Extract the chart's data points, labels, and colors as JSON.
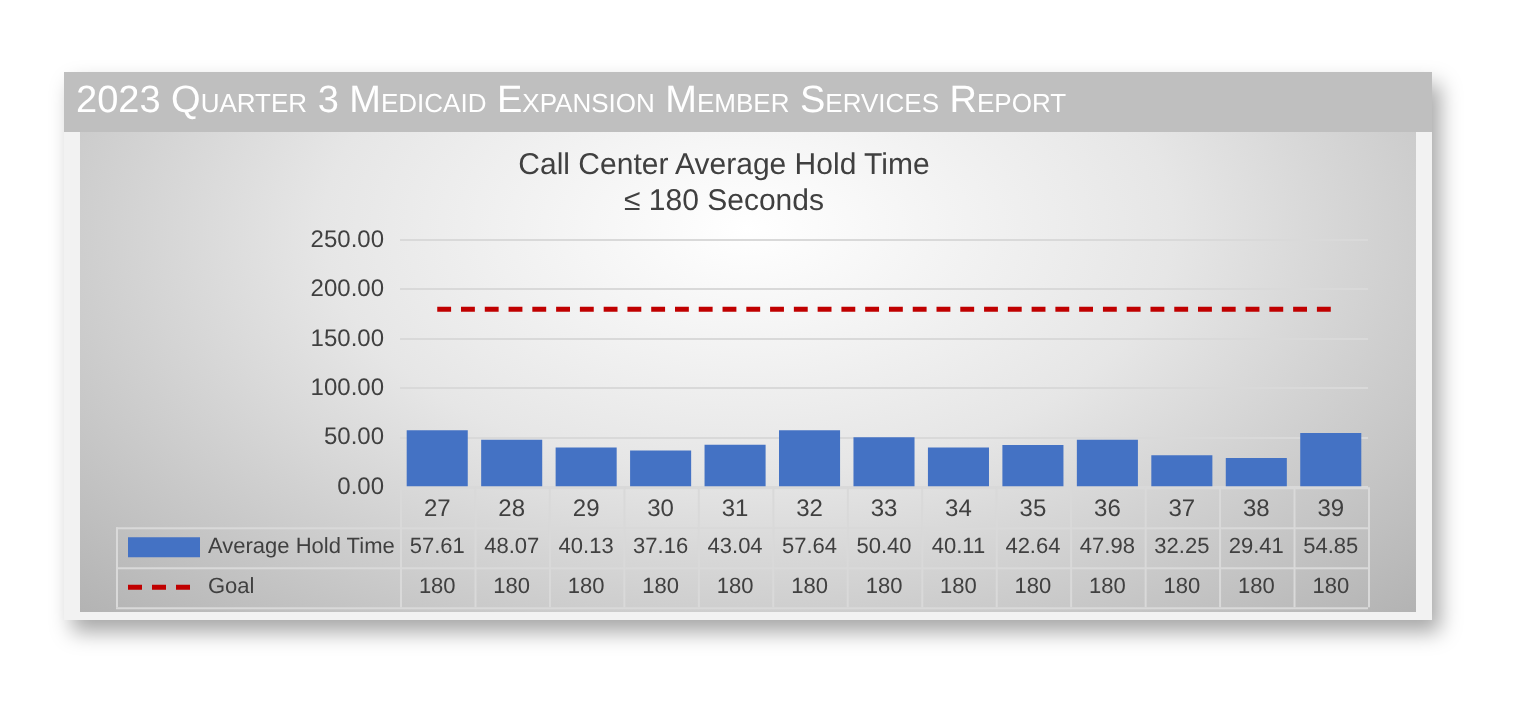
{
  "chart_data": {
    "type": "bar",
    "title": "2023 Quarter 3 Medicaid Expansion Member Services Report",
    "subtitle": "Call Center Average Hold Time\n≤ 180 Seconds",
    "categories": [
      "27",
      "28",
      "29",
      "30",
      "31",
      "32",
      "33",
      "34",
      "35",
      "36",
      "37",
      "38",
      "39"
    ],
    "series": [
      {
        "name": "Average Hold Time",
        "color": "#4472c4",
        "values": [
          57.61,
          48.07,
          40.13,
          37.16,
          43.04,
          57.64,
          50.4,
          40.11,
          42.64,
          47.98,
          32.25,
          29.41,
          54.85
        ],
        "value_labels": [
          "57.61",
          "48.07",
          "40.13",
          "37.16",
          "43.04",
          "57.64",
          "50.40",
          "40.11",
          "42.64",
          "47.98",
          "32.25",
          "29.41",
          "54.85"
        ]
      },
      {
        "name": "Goal",
        "type": "line",
        "color": "#c00000",
        "line_style": "dashed",
        "marker": "none",
        "values": [
          180,
          180,
          180,
          180,
          180,
          180,
          180,
          180,
          180,
          180,
          180,
          180,
          180
        ],
        "value_labels": [
          "180",
          "180",
          "180",
          "180",
          "180",
          "180",
          "180",
          "180",
          "180",
          "180",
          "180",
          "180",
          "180"
        ]
      }
    ],
    "ylim": [
      0,
      250
    ],
    "yticks": [
      {
        "value": 0,
        "label": "0.00"
      },
      {
        "value": 50,
        "label": "50.00"
      },
      {
        "value": 100,
        "label": "100.00"
      },
      {
        "value": 150,
        "label": "150.00"
      },
      {
        "value": 200,
        "label": "200.00"
      },
      {
        "value": 250,
        "label": "250.00"
      }
    ],
    "grid": "y",
    "legend": "bottom"
  }
}
